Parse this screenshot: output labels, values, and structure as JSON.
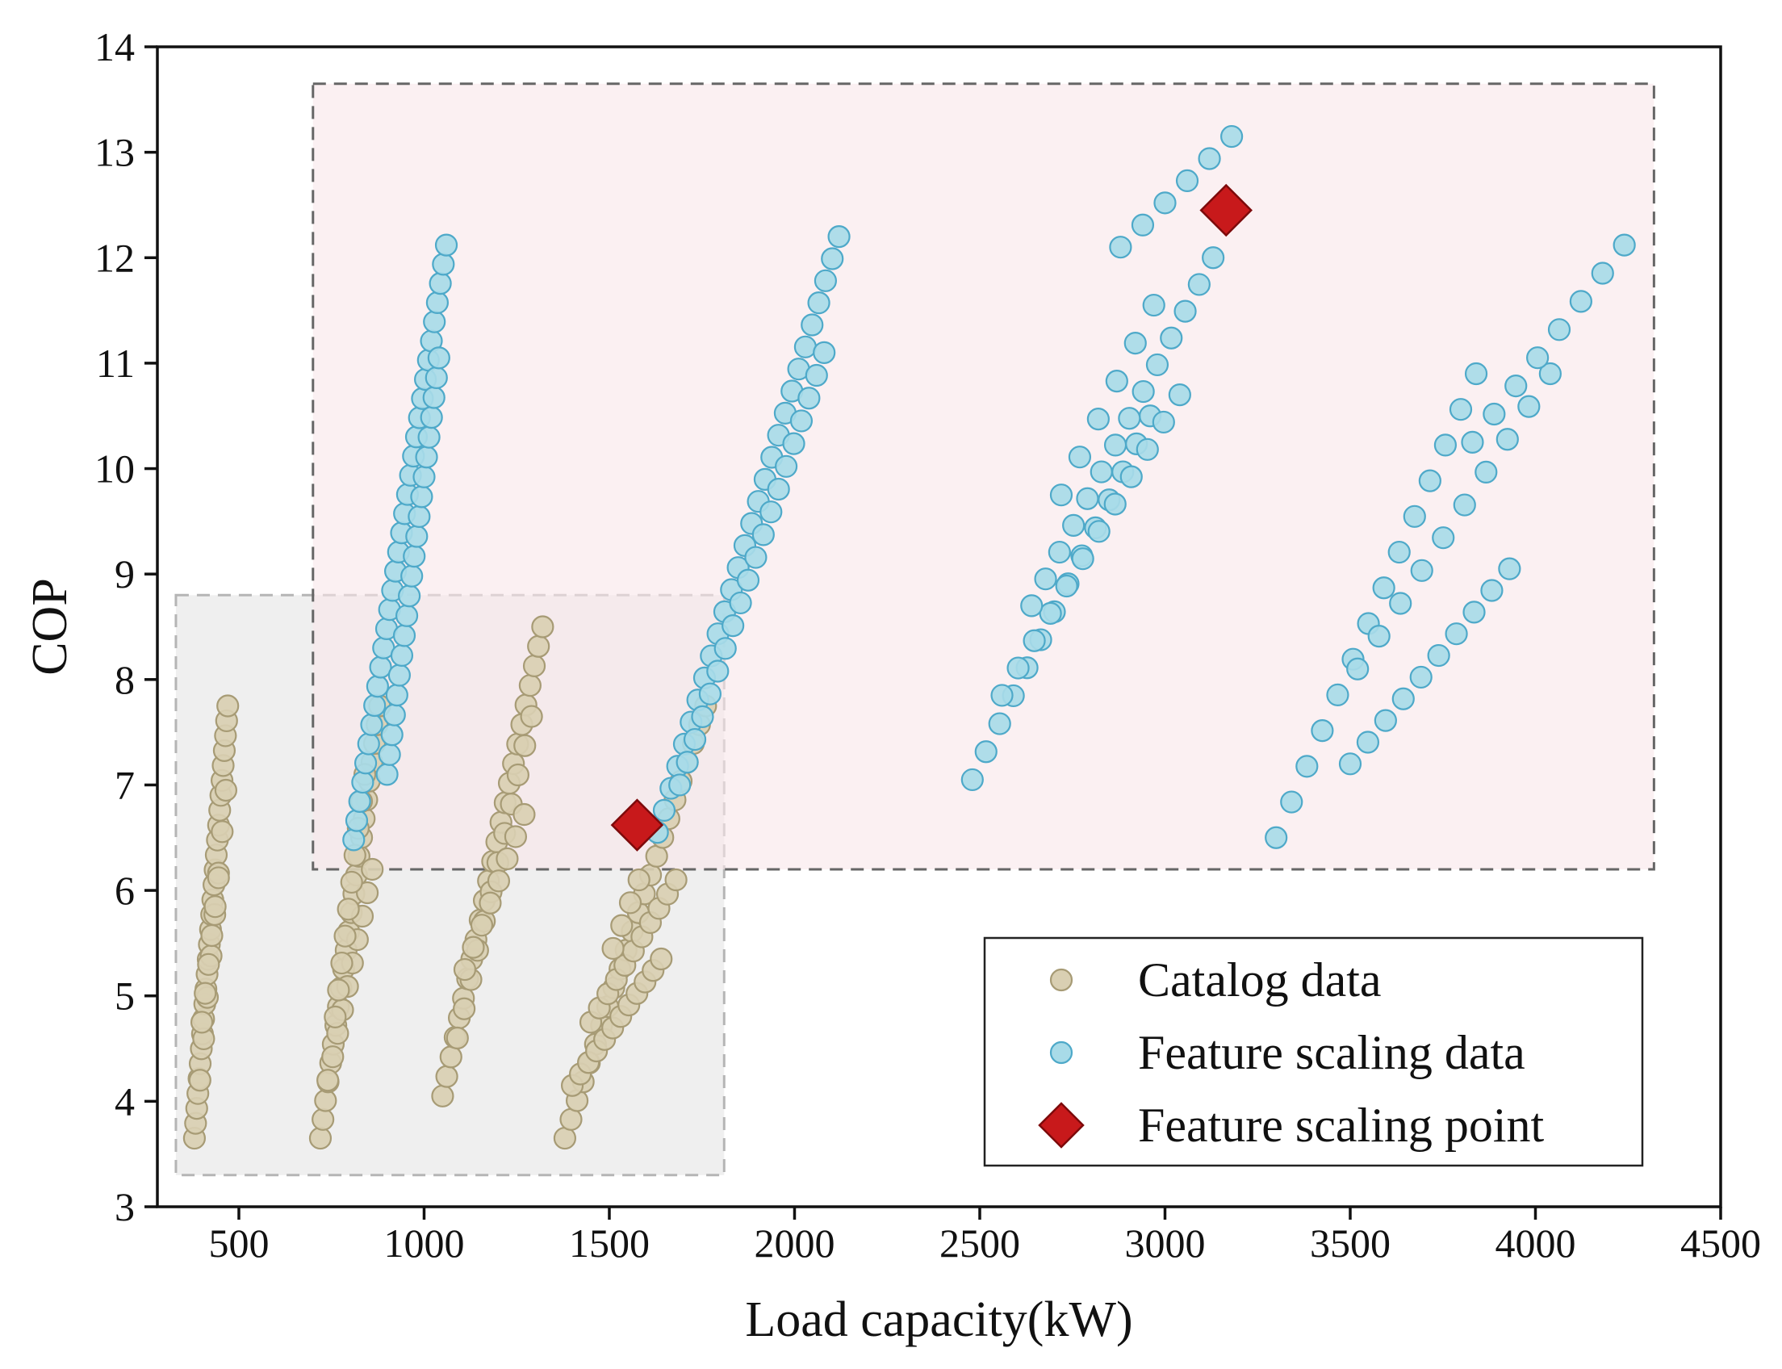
{
  "chart_data": {
    "type": "scatter",
    "xlabel": "Load capacity(kW)",
    "ylabel": "COP",
    "xlim": [
      280,
      4500
    ],
    "ylim": [
      3,
      14
    ],
    "xticks": [
      500,
      1000,
      1500,
      2000,
      2500,
      3000,
      3500,
      4000,
      4500
    ],
    "yticks": [
      3,
      4,
      5,
      6,
      7,
      8,
      9,
      10,
      11,
      12,
      13,
      14
    ],
    "grid": false,
    "legend_position": "bottom-right",
    "colors": {
      "catalog_fill": "#d9cfb2",
      "catalog_edge": "#a79b75",
      "scaling_fill": "#a8dbe8",
      "scaling_edge": "#4ea9c9",
      "point_fill": "#c8191b",
      "point_edge": "#7d0a0b",
      "catalog_region": "#e9e9e9",
      "scaling_region": "#f8e6ea"
    },
    "regions": [
      {
        "name": "catalog-region",
        "x": [
          330,
          1810
        ],
        "y": [
          3.3,
          8.8
        ]
      },
      {
        "name": "scaling-region",
        "x": [
          700,
          4320
        ],
        "y": [
          6.2,
          13.65
        ]
      }
    ],
    "series": [
      {
        "name": "Catalog data",
        "marker": "circle",
        "groups": [
          {
            "x0": 380,
            "y0": 3.65,
            "x1": 470,
            "y1": 7.75,
            "n": 30
          },
          {
            "x0": 395,
            "y0": 4.2,
            "x1": 465,
            "y1": 6.95,
            "n": 8
          },
          {
            "x0": 400,
            "y0": 4.75,
            "x1": 445,
            "y1": 6.12,
            "n": 6
          },
          {
            "x0": 720,
            "y0": 3.65,
            "x1": 880,
            "y1": 7.75,
            "n": 24
          },
          {
            "x0": 740,
            "y0": 4.2,
            "x1": 860,
            "y1": 6.2,
            "n": 10
          },
          {
            "x0": 760,
            "y0": 4.8,
            "x1": 840,
            "y1": 7.1,
            "n": 10
          },
          {
            "x0": 1050,
            "y0": 4.05,
            "x1": 1320,
            "y1": 8.5,
            "n": 25
          },
          {
            "x0": 1090,
            "y0": 4.6,
            "x1": 1290,
            "y1": 7.65,
            "n": 12
          },
          {
            "x0": 1110,
            "y0": 5.25,
            "x1": 1270,
            "y1": 6.72,
            "n": 8
          },
          {
            "x0": 1380,
            "y0": 3.65,
            "x1": 1760,
            "y1": 7.75,
            "n": 24
          },
          {
            "x0": 1400,
            "y0": 4.15,
            "x1": 1640,
            "y1": 5.35,
            "n": 12
          },
          {
            "x0": 1450,
            "y0": 4.75,
            "x1": 1680,
            "y1": 6.1,
            "n": 11
          },
          {
            "x0": 1510,
            "y0": 5.45,
            "x1": 1580,
            "y1": 6.1,
            "n": 4
          }
        ]
      },
      {
        "name": "Feature scaling data",
        "marker": "circle",
        "groups": [
          {
            "x0": 810,
            "y0": 6.48,
            "x1": 1060,
            "y1": 12.12,
            "n": 32
          },
          {
            "x0": 900,
            "y0": 7.1,
            "x1": 1040,
            "y1": 11.05,
            "n": 22
          },
          {
            "x0": 1630,
            "y0": 6.55,
            "x1": 2120,
            "y1": 12.2,
            "n": 28
          },
          {
            "x0": 1690,
            "y0": 7.0,
            "x1": 2080,
            "y1": 11.1,
            "n": 20
          },
          {
            "x0": 2480,
            "y0": 7.05,
            "x1": 2960,
            "y1": 10.5,
            "n": 14
          },
          {
            "x0": 2560,
            "y0": 7.85,
            "x1": 3040,
            "y1": 10.7,
            "n": 12
          },
          {
            "x0": 2640,
            "y0": 8.7,
            "x1": 3130,
            "y1": 12.0,
            "n": 14
          },
          {
            "x0": 2720,
            "y0": 9.75,
            "x1": 2970,
            "y1": 11.55,
            "n": 6
          },
          {
            "x0": 2880,
            "y0": 12.1,
            "x1": 3180,
            "y1": 13.15,
            "n": 6
          },
          {
            "x0": 3300,
            "y0": 6.5,
            "x1": 3840,
            "y1": 10.9,
            "n": 14
          },
          {
            "x0": 3500,
            "y0": 7.2,
            "x1": 3930,
            "y1": 9.05,
            "n": 10
          },
          {
            "x0": 3520,
            "y0": 8.1,
            "x1": 4040,
            "y1": 10.9,
            "n": 10
          },
          {
            "x0": 3830,
            "y0": 10.25,
            "x1": 4240,
            "y1": 12.12,
            "n": 8
          }
        ]
      },
      {
        "name": "Feature scaling point",
        "marker": "diamond",
        "points": [
          {
            "x": 1575,
            "y": 6.62
          },
          {
            "x": 3165,
            "y": 12.45
          }
        ]
      }
    ]
  }
}
